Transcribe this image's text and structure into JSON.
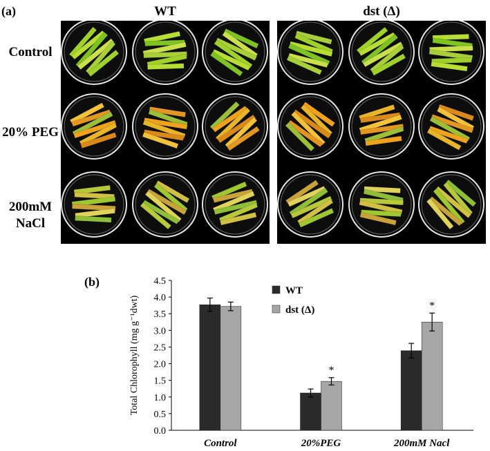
{
  "figure": {
    "panel_a_label": "(a)",
    "panel_b_label": "(b)",
    "groups": [
      "WT",
      "dst (Δ)"
    ],
    "rows": [
      {
        "label": "Control",
        "tone": "green"
      },
      {
        "label": "20% PEG",
        "tone": "orange"
      },
      {
        "label": "200mM\nNaCl",
        "tone": "mixed"
      }
    ]
  },
  "chart_data": {
    "type": "bar",
    "ylabel": "Total Chlorophyll (mg g⁻¹dwt)",
    "xlabel": "",
    "categories": [
      "Control",
      "20%PEG",
      "200mM Nacl"
    ],
    "ylim": [
      0,
      4.5
    ],
    "yticks": [
      "0.0",
      "0.5",
      "1.0",
      "1.5",
      "2.0",
      "2.5",
      "3.0",
      "3.5",
      "4.0",
      "4.5"
    ],
    "grid": false,
    "legend_position": "top-center",
    "series": [
      {
        "name": "WT",
        "color": "#2b2b2b",
        "values": [
          3.77,
          1.12,
          2.39
        ],
        "errors": [
          0.2,
          0.12,
          0.22
        ]
      },
      {
        "name": "dst (Δ)",
        "color": "#a6a6a6",
        "values": [
          3.72,
          1.47,
          3.25
        ],
        "errors": [
          0.13,
          0.11,
          0.27
        ]
      }
    ],
    "annotations": [
      {
        "series": 1,
        "category": 1,
        "text": "*"
      },
      {
        "series": 1,
        "category": 2,
        "text": "*"
      }
    ]
  }
}
